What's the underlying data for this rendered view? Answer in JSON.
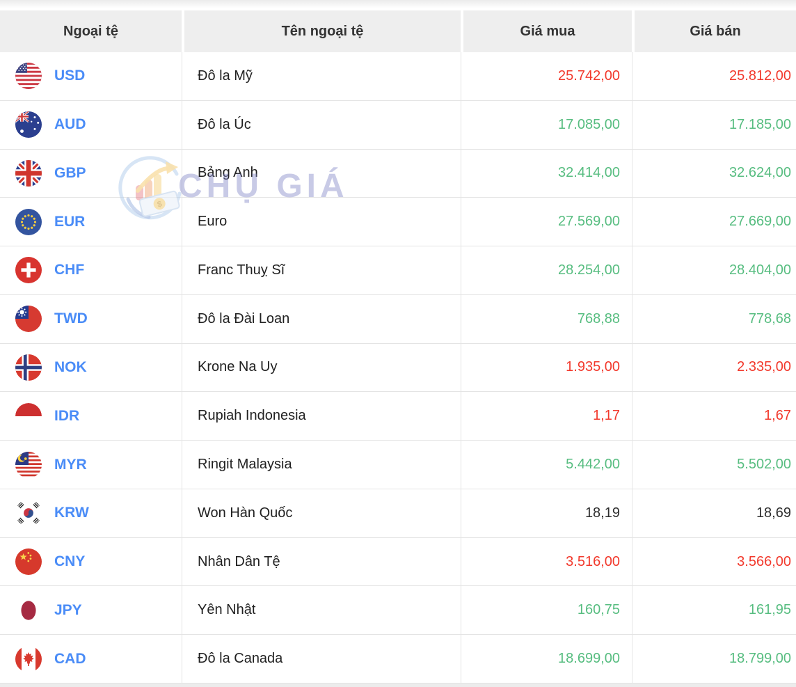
{
  "table": {
    "headers": [
      {
        "label": "Ngoại tệ"
      },
      {
        "label": "Tên ngoại tệ"
      },
      {
        "label": "Giá mua"
      },
      {
        "label": "Giá bán"
      }
    ],
    "rows": [
      {
        "code": "USD",
        "flag_icon": "usd-flag-icon",
        "name": "Đô la Mỹ",
        "buy": "25.742,00",
        "sell": "25.812,00",
        "trend": "down"
      },
      {
        "code": "AUD",
        "flag_icon": "aud-flag-icon",
        "name": "Đô la Úc",
        "buy": "17.085,00",
        "sell": "17.185,00",
        "trend": "up"
      },
      {
        "code": "GBP",
        "flag_icon": "gbp-flag-icon",
        "name": "Bảng Anh",
        "buy": "32.414,00",
        "sell": "32.624,00",
        "trend": "up"
      },
      {
        "code": "EUR",
        "flag_icon": "eur-flag-icon",
        "name": "Euro",
        "buy": "27.569,00",
        "sell": "27.669,00",
        "trend": "up"
      },
      {
        "code": "CHF",
        "flag_icon": "chf-flag-icon",
        "name": "Franc Thuỵ Sĩ",
        "buy": "28.254,00",
        "sell": "28.404,00",
        "trend": "up"
      },
      {
        "code": "TWD",
        "flag_icon": "twd-flag-icon",
        "name": "Đô la Đài Loan",
        "buy": "768,88",
        "sell": "778,68",
        "trend": "up"
      },
      {
        "code": "NOK",
        "flag_icon": "nok-flag-icon",
        "name": "Krone Na Uy",
        "buy": "1.935,00",
        "sell": "2.335,00",
        "trend": "down"
      },
      {
        "code": "IDR",
        "flag_icon": "idr-flag-icon",
        "name": "Rupiah Indonesia",
        "buy": "1,17",
        "sell": "1,67",
        "trend": "down"
      },
      {
        "code": "MYR",
        "flag_icon": "myr-flag-icon",
        "name": "Ringit Malaysia",
        "buy": "5.442,00",
        "sell": "5.502,00",
        "trend": "up"
      },
      {
        "code": "KRW",
        "flag_icon": "krw-flag-icon",
        "name": "Won Hàn Quốc",
        "buy": "18,19",
        "sell": "18,69",
        "trend": "neutral"
      },
      {
        "code": "CNY",
        "flag_icon": "cny-flag-icon",
        "name": "Nhân Dân Tệ",
        "buy": "3.516,00",
        "sell": "3.566,00",
        "trend": "down"
      },
      {
        "code": "JPY",
        "flag_icon": "jpy-flag-icon",
        "name": "Yên Nhật",
        "buy": "160,75",
        "sell": "161,95",
        "trend": "up"
      },
      {
        "code": "CAD",
        "flag_icon": "cad-flag-icon",
        "name": "Đô la Canada",
        "buy": "18.699,00",
        "sell": "18.799,00",
        "trend": "up"
      }
    ]
  },
  "watermark": {
    "text": "CHỤ GIÁ",
    "logo_icon": "chogia-logo-icon"
  },
  "colors": {
    "up": "#57bd80",
    "down": "#f2392c",
    "neutral": "#2e2e2e",
    "code_blue": "#4a8cf7",
    "header_bg": "#eeeeee",
    "row_border": "#e4e4e4",
    "watermark_text": "#7b80c3"
  }
}
